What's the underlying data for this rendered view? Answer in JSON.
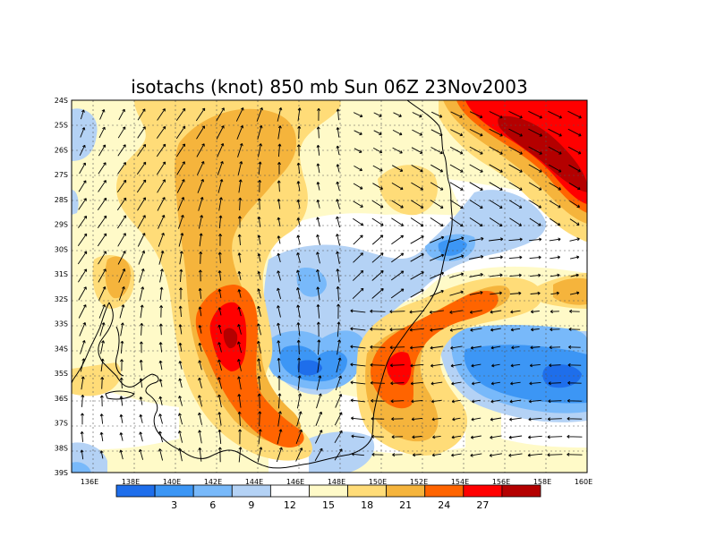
{
  "title": "isotachs (knot) 850 mb Sun 06Z 23Nov2003",
  "lon_labels": [
    "136E",
    "138E",
    "140E",
    "142E",
    "144E",
    "146E",
    "148E",
    "150E",
    "152E",
    "154E",
    "156E",
    "158E",
    "160E"
  ],
  "lat_labels": [
    "24S",
    "25S",
    "26S",
    "27S",
    "28S",
    "29S",
    "30S",
    "31S",
    "32S",
    "33S",
    "34S",
    "35S",
    "36S",
    "37S",
    "38S",
    "39S"
  ],
  "colorbar": {
    "colors": [
      "#1e6eeb",
      "#3c96f5",
      "#78b9fa",
      "#b4d2f5",
      "#ffffff",
      "#fffac8",
      "#ffdc78",
      "#f5b43c",
      "#ff6400",
      "#ff0000",
      "#b40000"
    ],
    "labels": [
      "3",
      "6",
      "9",
      "12",
      "15",
      "18",
      "21",
      "24",
      "27"
    ]
  },
  "map_data": {
    "lon_range": [
      135,
      160
    ],
    "lat_range": [
      -39,
      -24
    ],
    "field": "isotachs (knot)",
    "level": "850 mb",
    "valid": "Sun 06Z 23Nov2003",
    "speed_bins": [
      3,
      6,
      9,
      12,
      15,
      18,
      21,
      24,
      27
    ],
    "wind_maxima": [
      {
        "region": "northeast (25-28S, 154-160E)",
        "speed_range": "24-27+"
      },
      {
        "region": "inland NSW/VIC (33-34S, 142.5E)",
        "speed_range": "24-27"
      },
      {
        "region": "south coast (35S, 150.5E)",
        "speed_range": "24-27"
      }
    ],
    "wind_minima": [
      {
        "region": "Tasman Sea (35S, 154-158E)",
        "speed_range": "3-6"
      },
      {
        "region": "south of Victoria (34.5S, 146E)",
        "speed_range": "3-6"
      }
    ]
  }
}
